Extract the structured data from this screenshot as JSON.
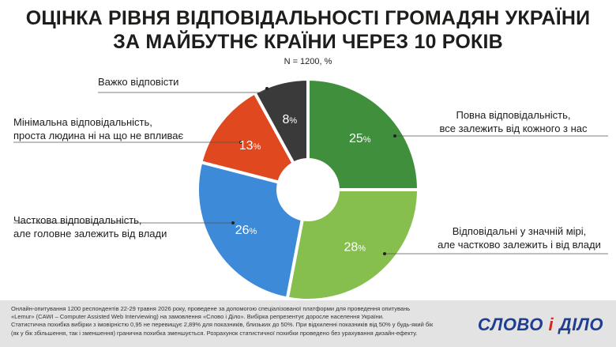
{
  "header": {
    "title_line1": "ОЦІНКА РІВНЯ ВІДПОВІДАЛЬНОСТІ ГРОМАДЯН УКРАЇНИ",
    "title_line2": "ЗА МАЙБУТНЄ КРАЇНИ ЧЕРЕЗ 10 РОКІВ",
    "subtitle": "N = 1200, %"
  },
  "chart_data": {
    "type": "pie",
    "donut": true,
    "unit": "%",
    "slices": [
      {
        "label_line1": "Повна відповідальність,",
        "label_line2": "все залежить від кожного з нас",
        "value": 25,
        "color": "#3f8f3d"
      },
      {
        "label_line1": "Відповідальні у значній мірі,",
        "label_line2": "але частково залежить і від влади",
        "value": 28,
        "color": "#86bf4e"
      },
      {
        "label_line1": "Часткова відповідальність,",
        "label_line2": "але головне залежить від влади",
        "value": 26,
        "color": "#3c8ad8"
      },
      {
        "label_line1": "Мінімальна відповідальність,",
        "label_line2": "проста людина ні на що не впливає",
        "value": 13,
        "color": "#e0491f"
      },
      {
        "label_line1": "Важко відповісти",
        "label_line2": "",
        "value": 8,
        "color": "#3a3a3a"
      }
    ]
  },
  "footer": {
    "note_line1": "Онлайн-опитування 1200 респондентів 22-29 травня 2026 року, проведене за допомогою спеціалізованої платформи для проведення опитувань",
    "note_line2": "«Lemur» (CAWI – Computer Assisted Web Interviewing) на замовлення «Слово і Діло». Вибірка репрезентує доросле населення України.",
    "note_line3": "Статистична похибка вибірки з імовірністю 0,95 не перевищує 2,89% для показників, близьких до 50%. При відхиленні показників від 50% у будь-який бік",
    "note_line4": "(як у бік збільшення, так і зменшення) гранична похибка зменшується. Розрахунок статистичної похибки проведено без урахування дизайн-ефекту.",
    "logo_part1": "СЛОВО",
    "logo_amp": "і",
    "logo_part2": "ДІЛО"
  }
}
